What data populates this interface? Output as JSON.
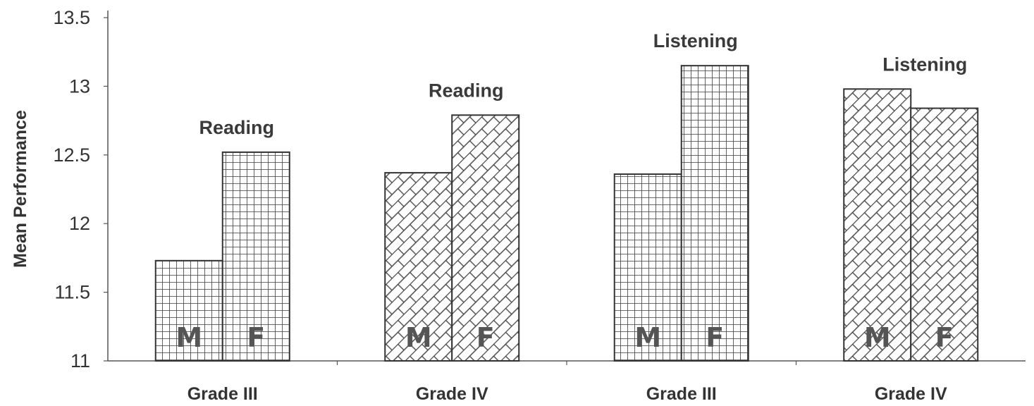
{
  "chart_data": {
    "type": "bar",
    "ylabel": "Mean Performance",
    "xlabel": "",
    "ylim": [
      11,
      13.5
    ],
    "yticks": [
      "11",
      "11.5",
      "12",
      "12.5",
      "13",
      "13.5"
    ],
    "categories": [
      "Grade III",
      "Grade IV",
      "Grade III",
      "Grade IV"
    ],
    "annotations": [
      "Reading",
      "Reading",
      "Listening",
      "Listening"
    ],
    "bar_labels": [
      "M",
      "F"
    ],
    "series": [
      {
        "values": [
          11.73,
          12.37,
          12.36,
          12.98
        ]
      },
      {
        "values": [
          12.52,
          12.79,
          13.15,
          12.84
        ]
      }
    ],
    "patterns": [
      "grid",
      "bricks-diagonal",
      "grid",
      "bricks-diagonal"
    ],
    "grid": false
  }
}
